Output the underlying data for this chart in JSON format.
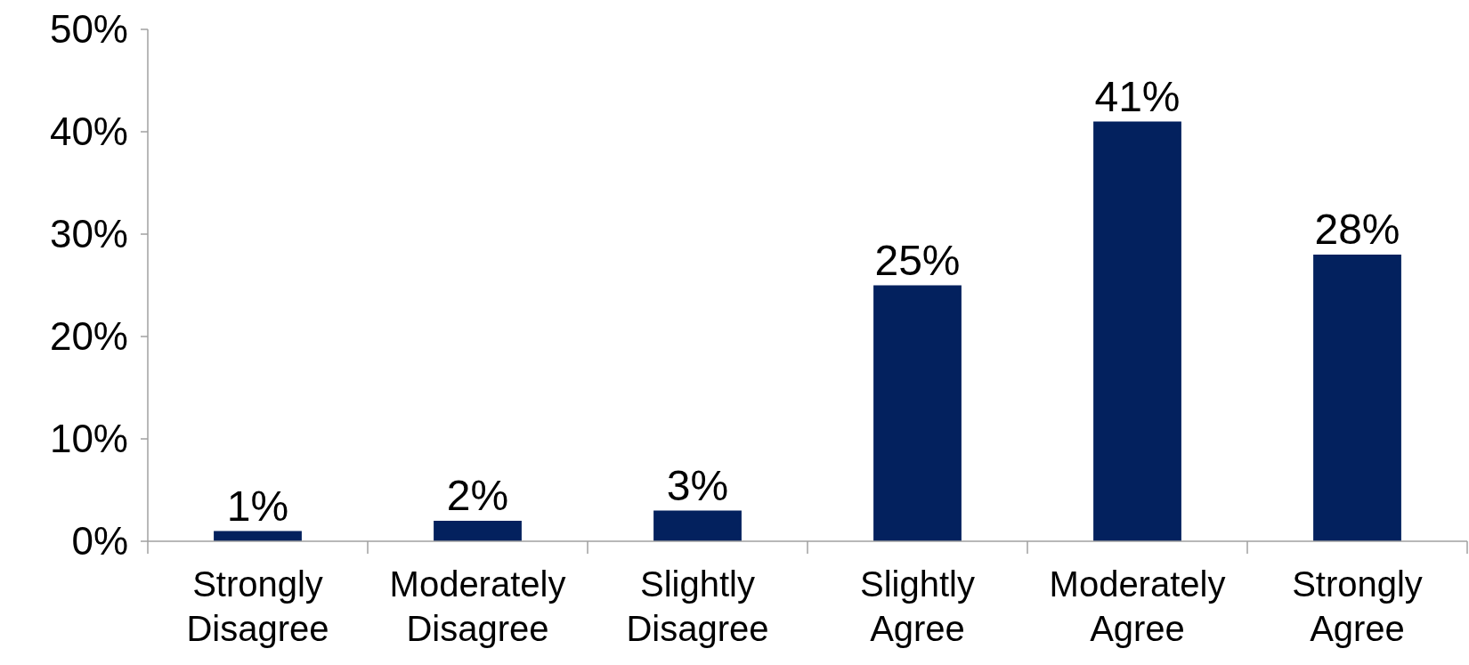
{
  "chart_data": {
    "type": "bar",
    "categories": [
      "Strongly Disagree",
      "Moderately Disagree",
      "Slightly Disagree",
      "Slightly Agree",
      "Moderately Agree",
      "Strongly Agree"
    ],
    "values": [
      1,
      2,
      3,
      25,
      41,
      28
    ],
    "value_labels": [
      "1%",
      "2%",
      "3%",
      "25%",
      "41%",
      "28%"
    ],
    "color": "#03215e",
    "ylim": [
      0,
      50
    ],
    "yticks": [
      {
        "value": 0,
        "label": "0%"
      },
      {
        "value": 10,
        "label": "10%"
      },
      {
        "value": 20,
        "label": "20%"
      },
      {
        "value": 30,
        "label": "30%"
      },
      {
        "value": 40,
        "label": "40%"
      },
      {
        "value": 50,
        "label": "50%"
      }
    ],
    "grid": false
  }
}
